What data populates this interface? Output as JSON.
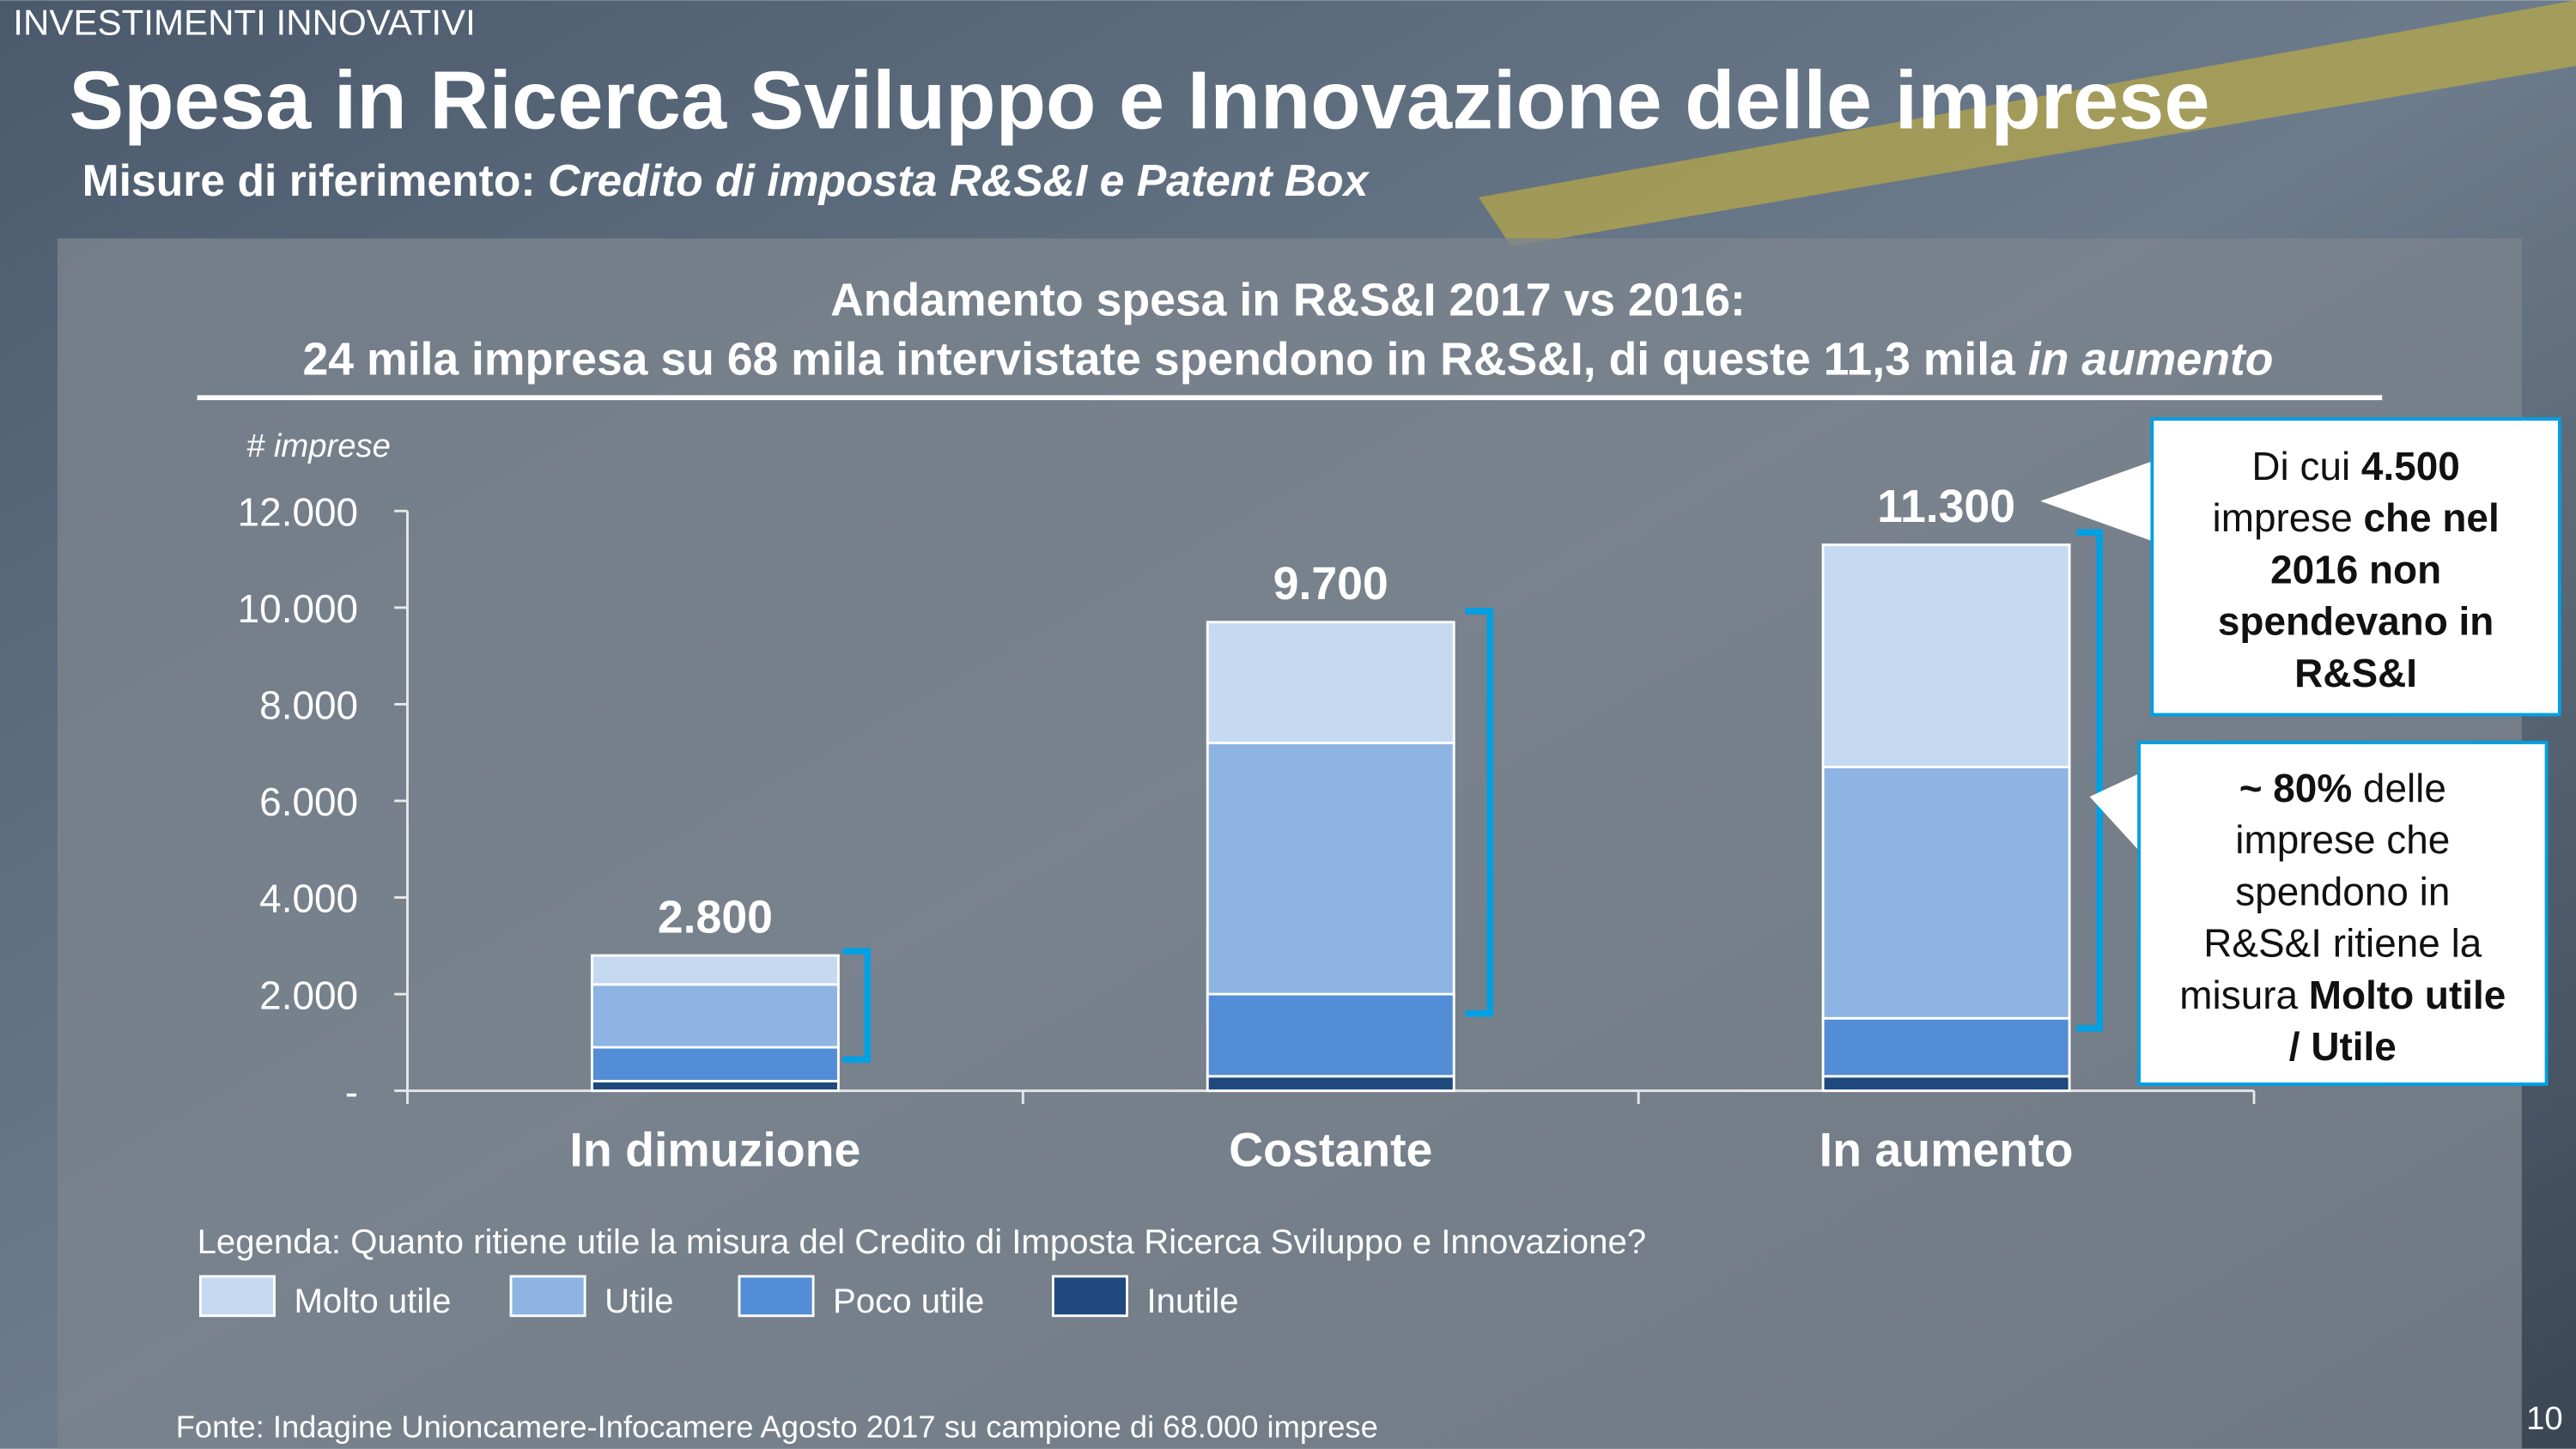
{
  "header": {
    "section": "INVESTIMENTI INNOVATIVI",
    "title": "Spesa in Ricerca Sviluppo e Innovazione delle imprese",
    "subtitle": "Misure di riferimento: ",
    "subtitle_italic": "Credito di imposta R&S&I e Patent Box"
  },
  "chart_data": {
    "type": "bar",
    "stacked": true,
    "title": "Andamento spesa in R&S&I 2017 vs 2016:",
    "subtitle": "24 mila impresa su 68 mila intervistate spendono in R&S&I, di queste 11,3 mila ",
    "subtitle_italic": "in aumento",
    "y_label": "# imprese",
    "categories": [
      "In dimuzione",
      "Costante",
      "In aumento"
    ],
    "series": [
      {
        "name": "Inutile",
        "color": "#1f497d",
        "values": [
          200,
          300,
          300
        ]
      },
      {
        "name": "Poco utile",
        "color": "#538dd5",
        "values": [
          700,
          1700,
          1200
        ]
      },
      {
        "name": "Utile",
        "color": "#8db4e2",
        "values": [
          1300,
          5200,
          5200
        ]
      },
      {
        "name": "Molto utile",
        "color": "#c5d9f1",
        "values": [
          600,
          2500,
          4600
        ]
      }
    ],
    "totals": {
      "values": [
        2800,
        9700,
        11300
      ],
      "value_labels": [
        "2.800",
        "9.700",
        "11.300"
      ]
    },
    "ylim": [
      0,
      12000
    ],
    "yticks": [
      {
        "value": 0,
        "label": "-"
      },
      {
        "value": 2000,
        "label": "2.000"
      },
      {
        "value": 4000,
        "label": "4.000"
      },
      {
        "value": 6000,
        "label": "6.000"
      },
      {
        "value": 8000,
        "label": "8.000"
      },
      {
        "value": 10000,
        "label": "10.000"
      },
      {
        "value": 12000,
        "label": "12.000"
      }
    ],
    "legend_title": "Legenda: Quanto ritiene utile la misura del Credito di Imposta Ricerca Sviluppo e Innovazione?",
    "legend_order": [
      3,
      2,
      1,
      0
    ]
  },
  "callouts": [
    {
      "lines": [
        [
          {
            "text": "Di cui "
          },
          {
            "text": "4.500",
            "bold": true
          }
        ],
        [
          {
            "text": "imprese "
          },
          {
            "text": "che nel",
            "bold": true
          }
        ],
        [
          {
            "text": "2016 non",
            "bold": true
          }
        ],
        [
          {
            "text": "spendevano in",
            "bold": true
          }
        ],
        [
          {
            "text": "R&S&I",
            "bold": true
          }
        ]
      ]
    },
    {
      "lines": [
        [
          {
            "text": "~ 80%",
            "bold": true
          },
          {
            "text": " delle"
          }
        ],
        [
          {
            "text": "imprese che"
          }
        ],
        [
          {
            "text": "spendono in"
          }
        ],
        [
          {
            "text": "R&S&I ritiene la"
          }
        ],
        [
          {
            "text": "misura "
          },
          {
            "text": "Molto utile",
            "bold": true
          }
        ],
        [
          {
            "text": "/ Utile",
            "bold": true
          }
        ]
      ]
    }
  ],
  "footer": {
    "source": "Fonte: Indagine Unioncamere-Infocamere Agosto 2017 su campione di 68.000 imprese",
    "page": "10"
  }
}
